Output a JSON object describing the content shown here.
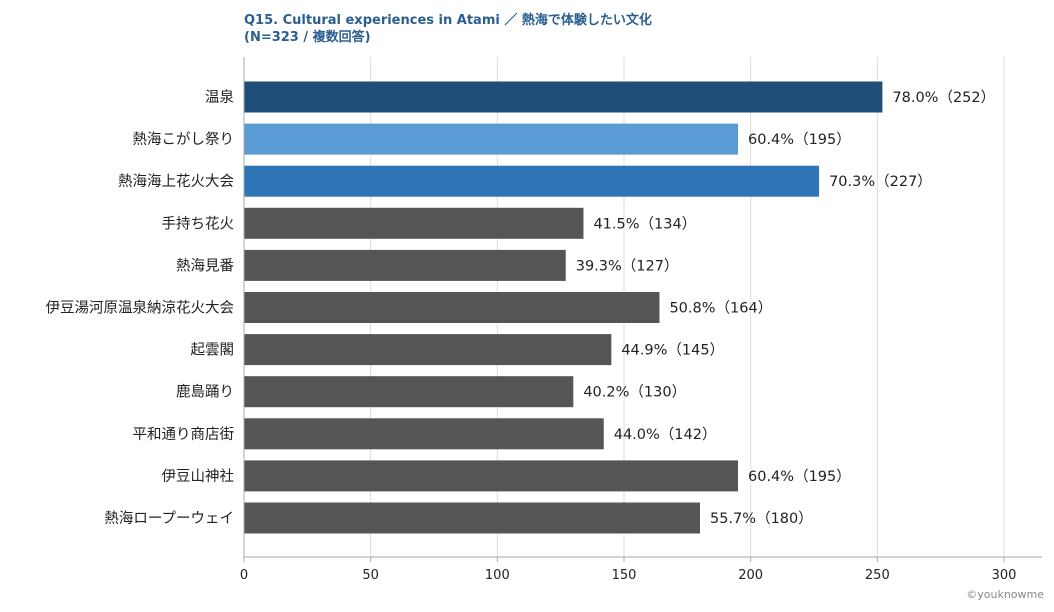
{
  "title_line1": "Q15. Cultural experiences in Atami ／ 熱海で体験したい文化",
  "title_line2": "(N=323 / 複数回答)",
  "credit": "©youknowme",
  "colors": {
    "highlight_1": "#1f4e79",
    "highlight_2": "#5b9bd5",
    "highlight_3": "#2e75b6",
    "default": "#555555",
    "grid": "#dddddd",
    "axis": "#aaaaaa"
  },
  "chart_data": {
    "type": "bar",
    "orientation": "horizontal",
    "categories": [
      "温泉",
      "熱海こがし祭り",
      "熱海海上花火大会",
      "手持ち花火",
      "熱海見番",
      "伊豆湯河原温泉納涼花火大会",
      "起雲閣",
      "鹿島踊り",
      "平和通り商店街",
      "伊豆山神社",
      "熱海ロープーウェイ"
    ],
    "values": [
      252,
      195,
      227,
      134,
      127,
      164,
      145,
      130,
      142,
      195,
      180
    ],
    "value_labels": [
      "78.0%（252）",
      "60.4%（195）",
      "70.3%（227）",
      "41.5%（134）",
      "39.3%（127）",
      "50.8%（164）",
      "44.9%（145）",
      "40.2%（130）",
      "44.0%（142）",
      "60.4%（195）",
      "55.7%（180）"
    ],
    "bar_colors": [
      "#1f4e79",
      "#5b9bd5",
      "#2e75b6",
      "#555555",
      "#555555",
      "#555555",
      "#555555",
      "#555555",
      "#555555",
      "#555555",
      "#555555"
    ],
    "xlim": [
      0,
      310
    ],
    "xticks": [
      0,
      50,
      100,
      150,
      200,
      250,
      300
    ],
    "grid": true,
    "title": "Q15. Cultural experiences in Atami ／ 熱海で体験したい文化",
    "subtitle": "(N=323 / 複数回答)"
  }
}
